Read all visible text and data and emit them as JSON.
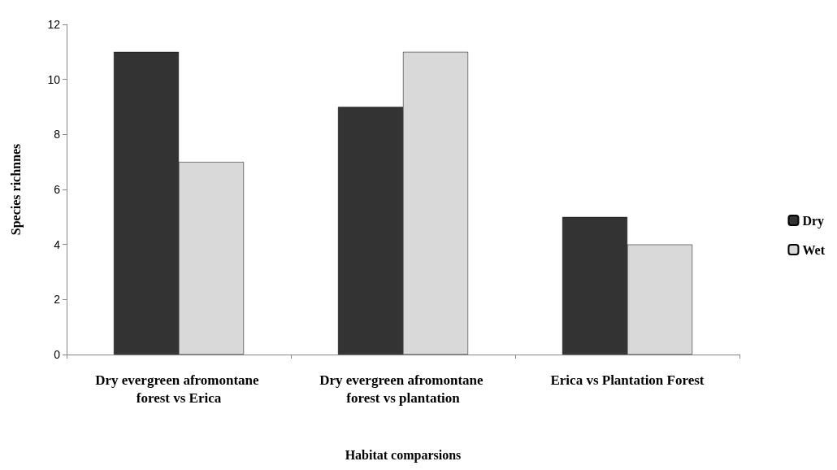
{
  "chart_data": {
    "type": "bar",
    "xlabel": "Habitat comparsions",
    "ylabel": "Species richnnes",
    "categories": [
      "Dry evergreen afromontane forest vs Erica",
      "Dry evergreen afromontane forest vs plantation",
      "Erica vs Plantation Forest"
    ],
    "series": [
      {
        "name": "Dry",
        "color": "#333333",
        "values": [
          11,
          9,
          5
        ]
      },
      {
        "name": "Wet",
        "color": "#d9d9d9",
        "values": [
          7,
          11,
          4
        ]
      }
    ],
    "ylim": [
      0,
      12
    ],
    "yticks": [
      0,
      2,
      4,
      6,
      8,
      10,
      12
    ],
    "grid": false,
    "legend": "right"
  }
}
